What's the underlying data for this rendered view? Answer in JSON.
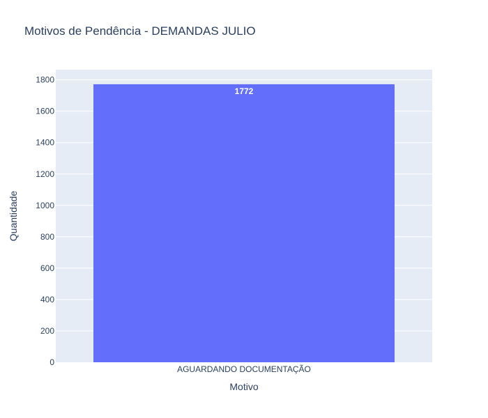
{
  "chart_data": {
    "type": "bar",
    "title": "Motivos de Pendência - DEMANDAS JULIO",
    "xlabel": "Motivo",
    "ylabel": "Quantidade",
    "categories": [
      "AGUARDANDO DOCUMENTAÇÃO"
    ],
    "values": [
      1772
    ],
    "data_labels": [
      "1772"
    ],
    "ylim": [
      0,
      1865
    ],
    "yticks": [
      0,
      200,
      400,
      600,
      800,
      1000,
      1200,
      1400,
      1600,
      1800
    ],
    "grid": true,
    "legend": "none",
    "colors": {
      "bar": "#636efa",
      "plot_background": "#e5ecf6",
      "gridline": "#ffffff",
      "text": "#2a3f5f"
    }
  }
}
